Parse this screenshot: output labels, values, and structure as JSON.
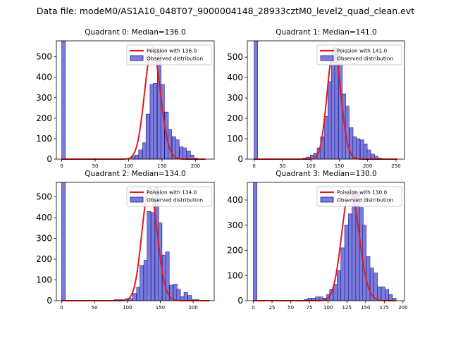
{
  "figure": {
    "suptitle": "Data file: modeM0/AS1A10_048T07_9000004148_28933cztM0_level2_quad_clean.evt"
  },
  "colors": {
    "bar_fill": "#7b7bdc",
    "bar_edge": "#1a1a8c",
    "fit_line": "#e41a1c",
    "axis": "#000000"
  },
  "chart_data": [
    {
      "type": "bar",
      "title": "Quadrant 0: Median=136.0",
      "xlim": [
        -8,
        228
      ],
      "ylim": [
        0,
        578
      ],
      "xticks": [
        0,
        50,
        100,
        150,
        200
      ],
      "yticks": [
        0,
        100,
        200,
        300,
        400,
        500
      ],
      "bin_width": 5.5,
      "bins": [
        [
          0,
          578
        ],
        [
          104,
          15
        ],
        [
          110,
          20
        ],
        [
          115,
          45
        ],
        [
          121,
          80
        ],
        [
          126,
          220
        ],
        [
          132,
          365
        ],
        [
          137,
          370
        ],
        [
          143,
          540
        ],
        [
          148,
          365
        ],
        [
          154,
          230
        ],
        [
          159,
          145
        ],
        [
          165,
          110
        ],
        [
          170,
          95
        ],
        [
          176,
          60
        ],
        [
          181,
          55
        ],
        [
          187,
          40
        ],
        [
          192,
          20
        ],
        [
          198,
          5
        ]
      ],
      "fit": {
        "mean": 136.0,
        "scale": 545,
        "x_range": [
          0,
          215
        ]
      },
      "legend": [
        "Poission with 136.0",
        "Observed distribution"
      ]
    },
    {
      "type": "bar",
      "title": "Quadrant 1: Median=141.0",
      "xlim": [
        -12,
        265
      ],
      "ylim": [
        0,
        580
      ],
      "xticks": [
        0,
        50,
        100,
        150,
        200,
        250
      ],
      "yticks": [
        0,
        100,
        200,
        300,
        400,
        500
      ],
      "bin_width": 6.3,
      "bins": [
        [
          0,
          580
        ],
        [
          86,
          5
        ],
        [
          92,
          10
        ],
        [
          99,
          20
        ],
        [
          105,
          30
        ],
        [
          111,
          55
        ],
        [
          117,
          110
        ],
        [
          124,
          210
        ],
        [
          130,
          380
        ],
        [
          136,
          520
        ],
        [
          142,
          545
        ],
        [
          149,
          470
        ],
        [
          155,
          320
        ],
        [
          161,
          260
        ],
        [
          168,
          155
        ],
        [
          174,
          110
        ],
        [
          180,
          100
        ],
        [
          187,
          95
        ],
        [
          193,
          75
        ],
        [
          199,
          45
        ],
        [
          206,
          25
        ],
        [
          212,
          15
        ],
        [
          218,
          5
        ]
      ],
      "fit": {
        "mean": 141.0,
        "scale": 545,
        "x_range": [
          0,
          252
        ]
      },
      "legend": [
        "Poission with 141.0",
        "Observed distribution"
      ]
    },
    {
      "type": "bar",
      "title": "Quadrant 2: Median=134.0",
      "xlim": [
        -8,
        232
      ],
      "ylim": [
        0,
        570
      ],
      "xticks": [
        0,
        50,
        100,
        150,
        200
      ],
      "yticks": [
        0,
        100,
        200,
        300,
        400,
        500
      ],
      "bin_width": 5.6,
      "bins": [
        [
          0,
          570
        ],
        [
          80,
          5
        ],
        [
          86,
          5
        ],
        [
          91,
          5
        ],
        [
          97,
          10
        ],
        [
          102,
          10
        ],
        [
          108,
          35
        ],
        [
          114,
          65
        ],
        [
          119,
          170
        ],
        [
          125,
          195
        ],
        [
          130,
          430
        ],
        [
          136,
          425
        ],
        [
          142,
          545
        ],
        [
          147,
          375
        ],
        [
          153,
          220
        ],
        [
          158,
          235
        ],
        [
          164,
          75
        ],
        [
          170,
          80
        ],
        [
          175,
          55
        ],
        [
          181,
          20
        ],
        [
          186,
          40
        ],
        [
          192,
          25
        ],
        [
          198,
          5
        ],
        [
          203,
          5
        ]
      ],
      "fit": {
        "mean": 134.0,
        "scale": 545,
        "x_range": [
          0,
          225
        ]
      },
      "legend": [
        "Poission with 134.0",
        "Observed distribution"
      ]
    },
    {
      "type": "bar",
      "title": "Quadrant 3: Median=130.0",
      "xlim": [
        -8,
        202
      ],
      "ylim": [
        0,
        470
      ],
      "xticks": [
        0,
        25,
        50,
        75,
        100,
        125,
        150,
        175,
        200
      ],
      "yticks": [
        0,
        100,
        200,
        300,
        400
      ],
      "bin_width": 4.9,
      "bins": [
        [
          0,
          470
        ],
        [
          68,
          5
        ],
        [
          73,
          10
        ],
        [
          78,
          10
        ],
        [
          83,
          15
        ],
        [
          88,
          15
        ],
        [
          93,
          10
        ],
        [
          98,
          25
        ],
        [
          102,
          45
        ],
        [
          107,
          65
        ],
        [
          112,
          120
        ],
        [
          117,
          210
        ],
        [
          122,
          300
        ],
        [
          127,
          345
        ],
        [
          132,
          440
        ],
        [
          137,
          430
        ],
        [
          142,
          370
        ],
        [
          146,
          300
        ],
        [
          151,
          175
        ],
        [
          156,
          130
        ],
        [
          161,
          110
        ],
        [
          166,
          55
        ],
        [
          171,
          55
        ],
        [
          176,
          45
        ],
        [
          181,
          25
        ],
        [
          186,
          10
        ]
      ],
      "fit": {
        "mean": 130.0,
        "scale": 445,
        "x_range": [
          0,
          190
        ]
      },
      "legend": [
        "Poission with 130.0",
        "Observed distribution"
      ]
    }
  ]
}
